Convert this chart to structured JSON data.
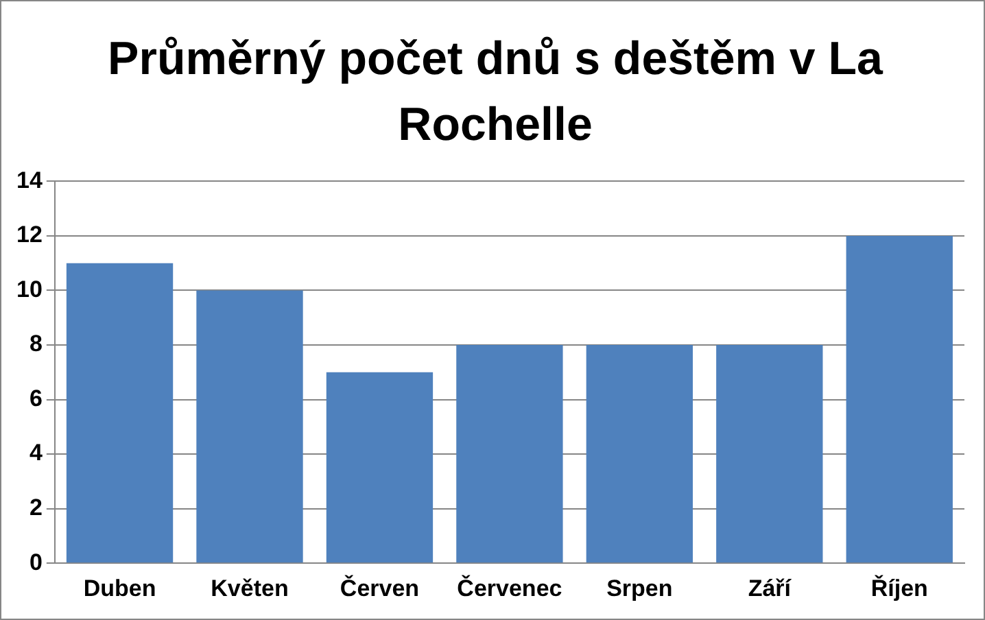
{
  "chart_data": {
    "type": "bar",
    "title": "Průměrný počet dnů s deštěm v La Rochelle",
    "categories": [
      "Duben",
      "Květen",
      "Červen",
      "Červenec",
      "Srpen",
      "Září",
      "Říjen"
    ],
    "values": [
      11,
      10,
      7,
      8,
      8,
      8,
      12
    ],
    "color": "#4f81bd",
    "ylim": [
      0,
      14
    ],
    "yticks": [
      0,
      2,
      4,
      6,
      8,
      10,
      12,
      14
    ],
    "grid": "y",
    "legend": false
  }
}
